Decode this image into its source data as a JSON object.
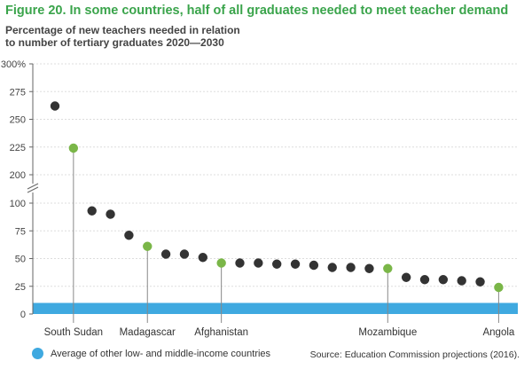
{
  "figure": {
    "title": "Figure 20. In some countries, half of all graduates needed to meet teacher demand",
    "subtitle_line1": "Percentage of new teachers needed in relation",
    "subtitle_line2": "to number of tertiary graduates 2020—2030",
    "legend_label": "Average of other low- and middle-income countries",
    "source": "Source: Education Commission projections (2016)."
  },
  "colors": {
    "dark": "#333333",
    "highlight": "#7ab648",
    "band": "#3fa9e0",
    "title": "#3aa44b"
  },
  "chart_data": {
    "type": "scatter",
    "title": "Figure 20. In some countries, half of all graduates needed to meet teacher demand",
    "ylabel": "Percentage of new teachers needed in relation to number of tertiary graduates 2020—2030",
    "ylim": [
      0,
      300
    ],
    "y_axis_break": [
      100,
      200
    ],
    "yticks": [
      "0",
      "25",
      "50",
      "75",
      "100",
      "200",
      "225",
      "250",
      "275",
      "300%"
    ],
    "labeled_categories": [
      "South Sudan",
      "Madagascar",
      "Afghanistan",
      "Mozambique",
      "Angola"
    ],
    "band": {
      "label": "Average of other low- and middle-income countries",
      "ymin": 0,
      "ymax": 10
    },
    "points": [
      {
        "rank": 1,
        "y": 262,
        "highlight": false,
        "label": ""
      },
      {
        "rank": 2,
        "y": 224,
        "highlight": true,
        "label": "South Sudan"
      },
      {
        "rank": 3,
        "y": 93,
        "highlight": false,
        "label": ""
      },
      {
        "rank": 4,
        "y": 90,
        "highlight": false,
        "label": ""
      },
      {
        "rank": 5,
        "y": 71,
        "highlight": false,
        "label": ""
      },
      {
        "rank": 6,
        "y": 61,
        "highlight": true,
        "label": "Madagascar"
      },
      {
        "rank": 7,
        "y": 54,
        "highlight": false,
        "label": ""
      },
      {
        "rank": 8,
        "y": 54,
        "highlight": false,
        "label": ""
      },
      {
        "rank": 9,
        "y": 51,
        "highlight": false,
        "label": ""
      },
      {
        "rank": 10,
        "y": 46,
        "highlight": true,
        "label": "Afghanistan"
      },
      {
        "rank": 11,
        "y": 46,
        "highlight": false,
        "label": ""
      },
      {
        "rank": 12,
        "y": 46,
        "highlight": false,
        "label": ""
      },
      {
        "rank": 13,
        "y": 45,
        "highlight": false,
        "label": ""
      },
      {
        "rank": 14,
        "y": 45,
        "highlight": false,
        "label": ""
      },
      {
        "rank": 15,
        "y": 44,
        "highlight": false,
        "label": ""
      },
      {
        "rank": 16,
        "y": 42,
        "highlight": false,
        "label": ""
      },
      {
        "rank": 17,
        "y": 42,
        "highlight": false,
        "label": ""
      },
      {
        "rank": 18,
        "y": 41,
        "highlight": false,
        "label": ""
      },
      {
        "rank": 19,
        "y": 41,
        "highlight": true,
        "label": "Mozambique"
      },
      {
        "rank": 20,
        "y": 33,
        "highlight": false,
        "label": ""
      },
      {
        "rank": 21,
        "y": 31,
        "highlight": false,
        "label": ""
      },
      {
        "rank": 22,
        "y": 31,
        "highlight": false,
        "label": ""
      },
      {
        "rank": 23,
        "y": 30,
        "highlight": false,
        "label": ""
      },
      {
        "rank": 24,
        "y": 29,
        "highlight": false,
        "label": ""
      },
      {
        "rank": 25,
        "y": 24,
        "highlight": true,
        "label": "Angola"
      }
    ]
  }
}
